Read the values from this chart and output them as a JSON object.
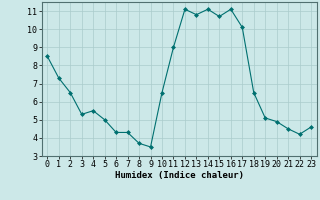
{
  "x": [
    0,
    1,
    2,
    3,
    4,
    5,
    6,
    7,
    8,
    9,
    10,
    11,
    12,
    13,
    14,
    15,
    16,
    17,
    18,
    19,
    20,
    21,
    22,
    23
  ],
  "y": [
    8.5,
    7.3,
    6.5,
    5.3,
    5.5,
    5.0,
    4.3,
    4.3,
    3.7,
    3.5,
    6.5,
    9.0,
    11.1,
    10.8,
    11.1,
    10.7,
    11.1,
    10.1,
    6.5,
    5.1,
    4.9,
    4.5,
    4.2,
    4.6
  ],
  "xlabel": "Humidex (Indice chaleur)",
  "ylim": [
    3,
    11.5
  ],
  "xlim": [
    -0.5,
    23.5
  ],
  "yticks": [
    3,
    4,
    5,
    6,
    7,
    8,
    9,
    10,
    11
  ],
  "xticks": [
    0,
    1,
    2,
    3,
    4,
    5,
    6,
    7,
    8,
    9,
    10,
    11,
    12,
    13,
    14,
    15,
    16,
    17,
    18,
    19,
    20,
    21,
    22,
    23
  ],
  "line_color": "#007070",
  "marker_color": "#007070",
  "bg_color": "#cce8e8",
  "grid_color": "#aacccc",
  "xlabel_fontsize": 6.5,
  "tick_fontsize": 6.0
}
